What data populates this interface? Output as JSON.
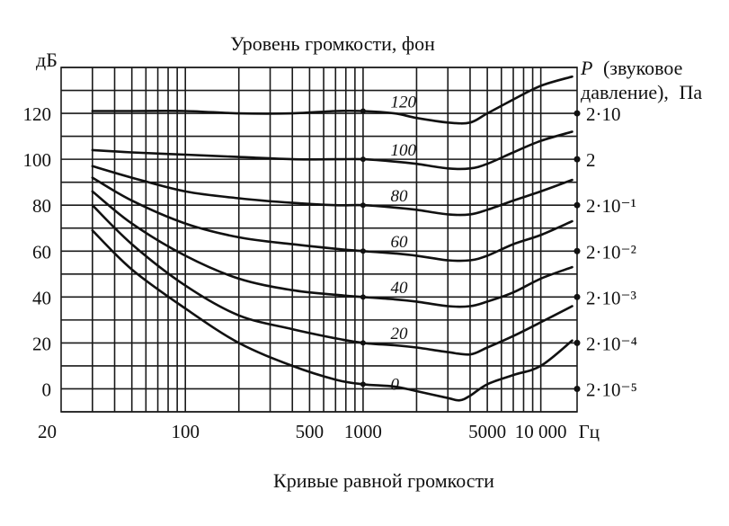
{
  "chart_data": {
    "type": "line",
    "title": "Уровень громкости, фон",
    "caption": "Кривые равной громкости",
    "ylabel": "дБ",
    "right_axis_label": {
      "symbol": "P",
      "line1": "(звуковое",
      "line2": "давление),",
      "unit": "Па"
    },
    "xlabel_unit": "Гц",
    "x_scale": "log",
    "xlim": [
      20,
      16000
    ],
    "ylim": [
      -10,
      140
    ],
    "x_tick_labels": [
      "20",
      "100",
      "500",
      "1000",
      "5000",
      "10 000"
    ],
    "x_ticks": [
      20,
      100,
      500,
      1000,
      5000,
      10000
    ],
    "y_tick_labels": [
      "0",
      "20",
      "40",
      "60",
      "80",
      "100",
      "120"
    ],
    "y_ticks": [
      0,
      20,
      40,
      60,
      80,
      100,
      120
    ],
    "right_ticks": [
      {
        "db": 120,
        "label": "2·10"
      },
      {
        "db": 100,
        "label": "2"
      },
      {
        "db": 80,
        "label": "2·10⁻¹"
      },
      {
        "db": 60,
        "label": "2·10⁻²"
      },
      {
        "db": 40,
        "label": "2·10⁻³"
      },
      {
        "db": 20,
        "label": "2·10⁻⁴"
      },
      {
        "db": 0,
        "label": "2·10⁻⁵"
      }
    ],
    "grid": true,
    "series": [
      {
        "name": "0",
        "label_at": [
          1300,
          2
        ],
        "x": [
          30,
          50,
          100,
          200,
          400,
          700,
          1000,
          1500,
          2000,
          3000,
          3500,
          4000,
          5000,
          7000,
          10000,
          15000
        ],
        "y": [
          69,
          52,
          35,
          20,
          10,
          4,
          2,
          1,
          -1,
          -4,
          -5,
          -3,
          2,
          6,
          10,
          21
        ]
      },
      {
        "name": "20",
        "label_at": [
          1300,
          24
        ],
        "x": [
          30,
          50,
          100,
          200,
          400,
          700,
          1000,
          1500,
          2000,
          3000,
          4000,
          5000,
          7000,
          10000,
          15000
        ],
        "y": [
          80,
          63,
          45,
          32,
          26,
          22,
          20,
          19,
          18,
          16,
          15,
          18,
          23,
          29,
          36
        ]
      },
      {
        "name": "40",
        "label_at": [
          1300,
          44
        ],
        "x": [
          30,
          50,
          100,
          200,
          400,
          700,
          1000,
          1500,
          2000,
          3000,
          4000,
          5000,
          7000,
          10000,
          15000
        ],
        "y": [
          86,
          72,
          58,
          48,
          43,
          41,
          40,
          39,
          38,
          36,
          36,
          38,
          42,
          48,
          53
        ]
      },
      {
        "name": "60",
        "label_at": [
          1300,
          64
        ],
        "x": [
          30,
          50,
          100,
          200,
          400,
          700,
          1000,
          1500,
          2000,
          3000,
          4000,
          5000,
          7000,
          10000,
          15000
        ],
        "y": [
          92,
          82,
          72,
          66,
          63,
          61,
          60,
          59,
          58,
          56,
          56,
          58,
          63,
          67,
          73
        ]
      },
      {
        "name": "80",
        "label_at": [
          1300,
          84
        ],
        "x": [
          30,
          50,
          100,
          200,
          400,
          700,
          1000,
          1500,
          2000,
          3000,
          4000,
          5000,
          7000,
          10000,
          15000
        ],
        "y": [
          97,
          92,
          86,
          83,
          81,
          80,
          80,
          79,
          78,
          76,
          76,
          78,
          82,
          86,
          91
        ]
      },
      {
        "name": "100",
        "label_at": [
          1300,
          104
        ],
        "x": [
          30,
          50,
          100,
          200,
          400,
          700,
          1000,
          1500,
          2000,
          3000,
          4000,
          5000,
          7000,
          10000,
          15000
        ],
        "y": [
          104,
          103,
          102,
          101,
          100,
          100,
          100,
          99,
          98,
          96,
          96,
          98,
          103,
          108,
          112
        ]
      },
      {
        "name": "120",
        "label_at": [
          1300,
          125
        ],
        "x": [
          30,
          50,
          100,
          200,
          400,
          700,
          1000,
          1500,
          2000,
          3000,
          4000,
          5000,
          7000,
          10000,
          15000
        ],
        "y": [
          121,
          121,
          121,
          120,
          120,
          121,
          121,
          120,
          118,
          116,
          116,
          120,
          126,
          132,
          136
        ]
      }
    ]
  }
}
